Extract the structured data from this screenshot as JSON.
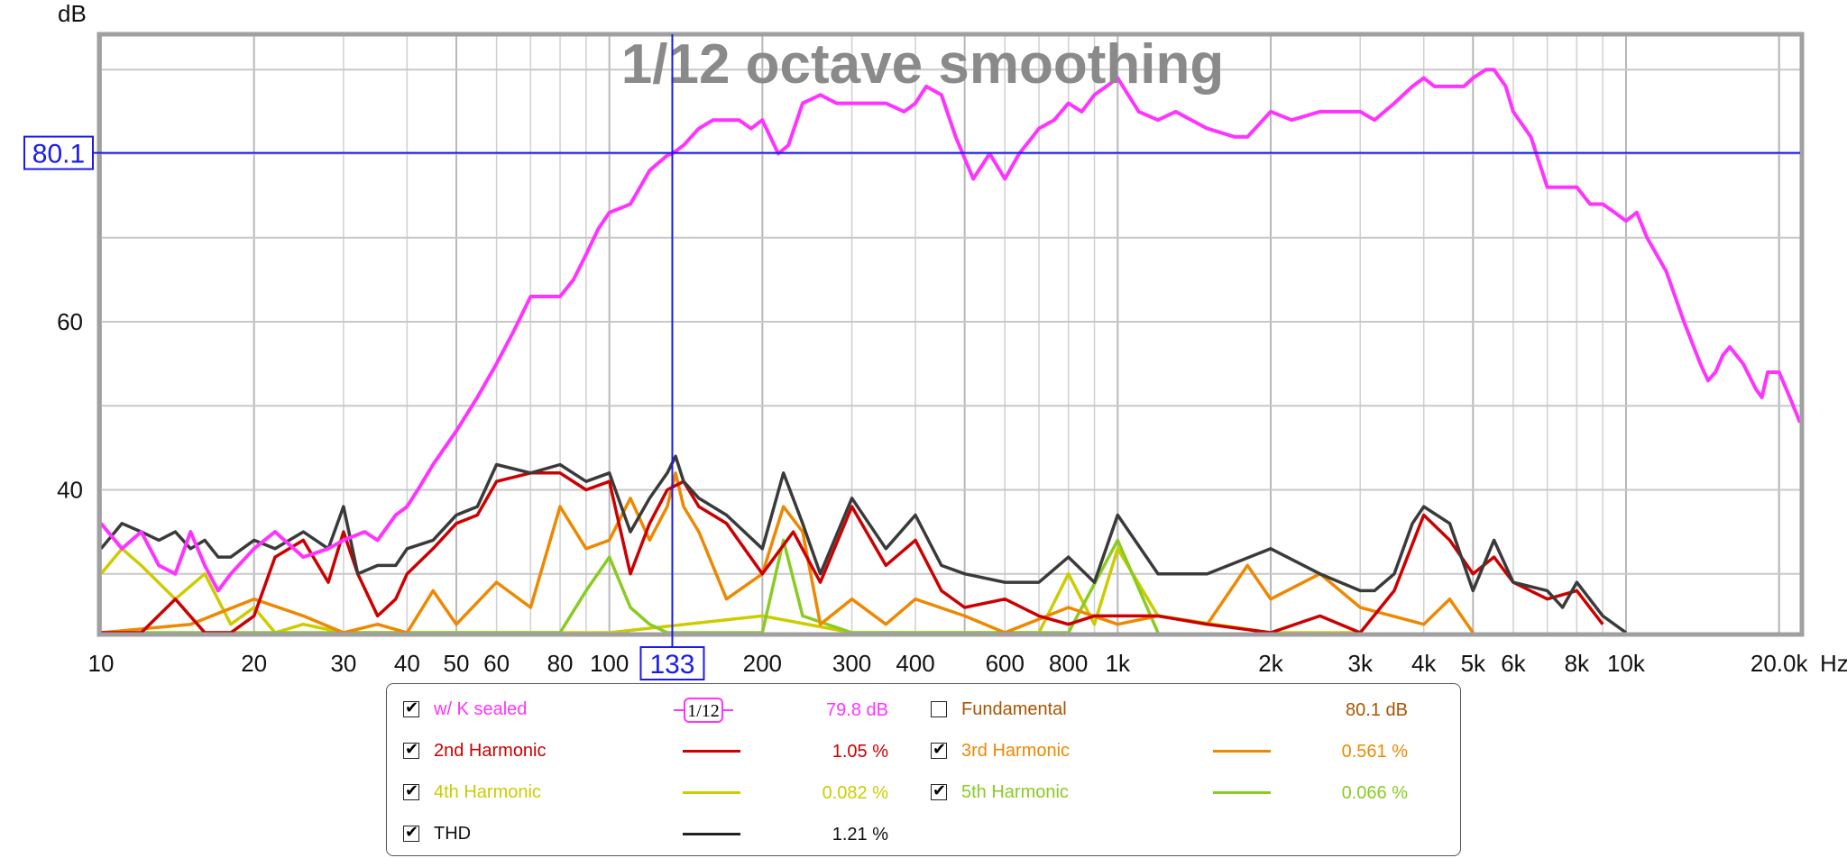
{
  "chart_data": {
    "type": "line",
    "title": "1/12 octave smoothing",
    "ylabel": "dB",
    "xunit": "Hz",
    "xscale": "log",
    "xlim": [
      10,
      22000
    ],
    "ylim": [
      23,
      94
    ],
    "x_ticks": [
      {
        "v": 10,
        "label": "10"
      },
      {
        "v": 20,
        "label": "20"
      },
      {
        "v": 30,
        "label": "30"
      },
      {
        "v": 40,
        "label": "40"
      },
      {
        "v": 50,
        "label": "50"
      },
      {
        "v": 60,
        "label": "60"
      },
      {
        "v": 80,
        "label": "80"
      },
      {
        "v": 100,
        "label": "100"
      },
      {
        "v": 200,
        "label": "200"
      },
      {
        "v": 300,
        "label": "300"
      },
      {
        "v": 400,
        "label": "400"
      },
      {
        "v": 600,
        "label": "600"
      },
      {
        "v": 800,
        "label": "800"
      },
      {
        "v": 1000,
        "label": "1k"
      },
      {
        "v": 2000,
        "label": "2k"
      },
      {
        "v": 3000,
        "label": "3k"
      },
      {
        "v": 4000,
        "label": "4k"
      },
      {
        "v": 5000,
        "label": "5k"
      },
      {
        "v": 6000,
        "label": "6k"
      },
      {
        "v": 8000,
        "label": "8k"
      },
      {
        "v": 10000,
        "label": "10k"
      },
      {
        "v": 20000,
        "label": "20.0k"
      }
    ],
    "y_ticks": [
      {
        "v": 40,
        "label": "40"
      },
      {
        "v": 60,
        "label": "60"
      }
    ],
    "grid": true,
    "cursor": {
      "x": 133,
      "x_label": "133",
      "y": 80.1,
      "y_label": "80.1",
      "color": "#1a1aee"
    },
    "series": [
      {
        "name": "w/ K sealed",
        "color": "#ff33ff",
        "x": [
          10,
          11,
          12,
          13,
          14,
          15,
          16,
          17,
          18,
          20,
          22,
          25,
          28,
          30,
          33,
          35,
          38,
          40,
          42,
          45,
          50,
          55,
          60,
          65,
          70,
          75,
          80,
          85,
          90,
          95,
          100,
          110,
          120,
          130,
          133,
          140,
          150,
          160,
          170,
          180,
          190,
          200,
          215,
          225,
          240,
          260,
          280,
          300,
          320,
          350,
          380,
          400,
          420,
          450,
          480,
          520,
          560,
          600,
          640,
          680,
          700,
          750,
          800,
          850,
          900,
          950,
          1000,
          1100,
          1200,
          1300,
          1500,
          1700,
          1800,
          2000,
          2200,
          2500,
          3000,
          3200,
          3500,
          3800,
          4000,
          4200,
          4500,
          4800,
          5000,
          5300,
          5500,
          5800,
          6000,
          6500,
          7000,
          7500,
          8000,
          8500,
          9000,
          9500,
          10000,
          10500,
          11000,
          12000,
          13000,
          14000,
          14500,
          15000,
          15500,
          16000,
          17000,
          18000,
          18500,
          19000,
          20000,
          21000,
          22000
        ],
        "y": [
          36,
          33,
          35,
          31,
          30,
          35,
          31,
          28,
          30,
          33,
          35,
          32,
          33,
          34,
          35,
          34,
          37,
          38,
          40,
          43,
          47,
          51,
          55,
          59,
          63,
          63,
          63,
          65,
          68,
          71,
          73,
          74,
          78,
          79.8,
          80,
          81,
          83,
          84,
          84,
          84,
          83,
          84,
          80,
          81,
          86,
          87,
          86,
          86,
          86,
          86,
          85,
          86,
          88,
          87,
          82,
          77,
          80,
          77,
          80,
          82,
          83,
          84,
          86,
          85,
          87,
          88,
          89,
          85,
          84,
          85,
          83,
          82,
          82,
          85,
          84,
          85,
          85,
          84,
          86,
          88,
          89,
          88,
          88,
          88,
          89,
          90,
          90,
          88,
          85,
          82,
          76,
          76,
          76,
          74,
          74,
          73,
          72,
          73,
          70,
          66,
          60,
          55,
          53,
          54,
          56,
          57,
          55,
          52,
          51,
          54,
          54,
          51,
          48
        ]
      },
      {
        "name": "2nd Harmonic",
        "color": "#cc0000",
        "x": [
          10,
          12,
          14,
          16,
          18,
          20,
          22,
          25,
          28,
          30,
          32,
          35,
          38,
          40,
          45,
          50,
          55,
          60,
          70,
          80,
          90,
          100,
          110,
          120,
          130,
          140,
          150,
          170,
          200,
          230,
          260,
          300,
          350,
          400,
          450,
          500,
          600,
          700,
          800,
          900,
          1000,
          1200,
          1500,
          2000,
          2500,
          3000,
          3500,
          4000,
          4500,
          5000,
          5500,
          6000,
          7000,
          8000,
          9000
        ],
        "y": [
          23,
          23,
          27,
          23,
          23,
          25,
          32,
          34,
          29,
          35,
          30,
          25,
          27,
          30,
          33,
          36,
          37,
          41,
          42,
          42,
          40,
          41,
          30,
          36,
          40,
          41,
          38,
          36,
          30,
          35,
          29,
          38,
          31,
          34,
          28,
          26,
          27,
          25,
          24,
          25,
          25,
          25,
          24,
          23,
          25,
          23,
          28,
          37,
          34,
          30,
          32,
          29,
          27,
          28,
          24
        ]
      },
      {
        "name": "3rd Harmonic",
        "color": "#ee8800",
        "x": [
          10,
          15,
          20,
          25,
          30,
          35,
          40,
          45,
          50,
          60,
          70,
          80,
          90,
          100,
          110,
          120,
          130,
          135,
          140,
          150,
          170,
          200,
          220,
          240,
          260,
          300,
          350,
          400,
          500,
          600,
          800,
          1000,
          1200,
          1500,
          1800,
          2000,
          2500,
          3000,
          4000,
          4500,
          5000
        ],
        "y": [
          23,
          24,
          27,
          25,
          23,
          24,
          23,
          28,
          24,
          29,
          26,
          38,
          33,
          34,
          39,
          34,
          38,
          42,
          38,
          35,
          27,
          30,
          38,
          35,
          24,
          27,
          24,
          27,
          25,
          23,
          26,
          24,
          25,
          24,
          31,
          27,
          30,
          26,
          24,
          27,
          23
        ]
      },
      {
        "name": "4th Harmonic",
        "color": "#cccc00",
        "x": [
          10,
          11,
          12,
          14,
          16,
          18,
          20,
          22,
          25,
          30,
          40,
          50,
          60,
          70,
          80,
          90,
          100,
          200,
          300,
          500,
          700,
          800,
          900,
          1000,
          1200,
          2000,
          3000
        ],
        "y": [
          30,
          33,
          31,
          27,
          30,
          24,
          26,
          23,
          24,
          23,
          23,
          23,
          23,
          23,
          23,
          23,
          23,
          25,
          23,
          23,
          23,
          30,
          24,
          33,
          25,
          23,
          23
        ]
      },
      {
        "name": "5th Harmonic",
        "color": "#88cc22",
        "x": [
          10,
          15,
          20,
          30,
          40,
          60,
          80,
          90,
          100,
          110,
          120,
          130,
          150,
          180,
          200,
          220,
          240,
          300,
          500,
          800,
          1000,
          1200
        ],
        "y": [
          23,
          23,
          23,
          23,
          23,
          23,
          23,
          28,
          32,
          26,
          24,
          23,
          23,
          23,
          23,
          34,
          25,
          23,
          23,
          23,
          34,
          23
        ]
      },
      {
        "name": "THD",
        "color": "#3a3a3a",
        "x": [
          10,
          11,
          12,
          13,
          14,
          15,
          16,
          17,
          18,
          20,
          22,
          25,
          28,
          30,
          32,
          35,
          38,
          40,
          45,
          50,
          55,
          60,
          70,
          80,
          90,
          100,
          110,
          120,
          130,
          135,
          140,
          150,
          170,
          200,
          220,
          240,
          260,
          300,
          350,
          400,
          450,
          500,
          600,
          700,
          800,
          900,
          1000,
          1200,
          1500,
          2000,
          2500,
          3000,
          3200,
          3500,
          3800,
          4000,
          4500,
          5000,
          5500,
          6000,
          7000,
          7500,
          8000,
          9000,
          10000
        ],
        "y": [
          33,
          36,
          35,
          34,
          35,
          33,
          34,
          32,
          32,
          34,
          33,
          35,
          33,
          38,
          30,
          31,
          31,
          33,
          34,
          37,
          38,
          43,
          42,
          43,
          41,
          42,
          35,
          39,
          42,
          44,
          41,
          39,
          37,
          33,
          42,
          36,
          30,
          39,
          33,
          37,
          31,
          30,
          29,
          29,
          32,
          29,
          37,
          30,
          30,
          33,
          30,
          28,
          28,
          30,
          36,
          38,
          36,
          28,
          34,
          29,
          28,
          26,
          29,
          25,
          23
        ]
      }
    ]
  },
  "legend": {
    "rows": [
      {
        "name": "w/ K sealed",
        "checked": true,
        "value": "79.8 dB",
        "color": "#ff33ff",
        "smoothing": "1/12"
      },
      {
        "name": "Fundamental",
        "checked": false,
        "value": "80.1 dB",
        "color": "#aa5500"
      },
      {
        "name": "2nd Harmonic",
        "checked": true,
        "value": "1.05 %",
        "color": "#cc0000"
      },
      {
        "name": "3rd Harmonic",
        "checked": true,
        "value": "0.561 %",
        "color": "#ee8800"
      },
      {
        "name": "4th Harmonic",
        "checked": true,
        "value": "0.082 %",
        "color": "#cccc00"
      },
      {
        "name": "5th Harmonic",
        "checked": true,
        "value": "0.066 %",
        "color": "#88cc22"
      },
      {
        "name": "THD",
        "checked": true,
        "value": "1.21 %",
        "color": "#222222"
      }
    ]
  }
}
